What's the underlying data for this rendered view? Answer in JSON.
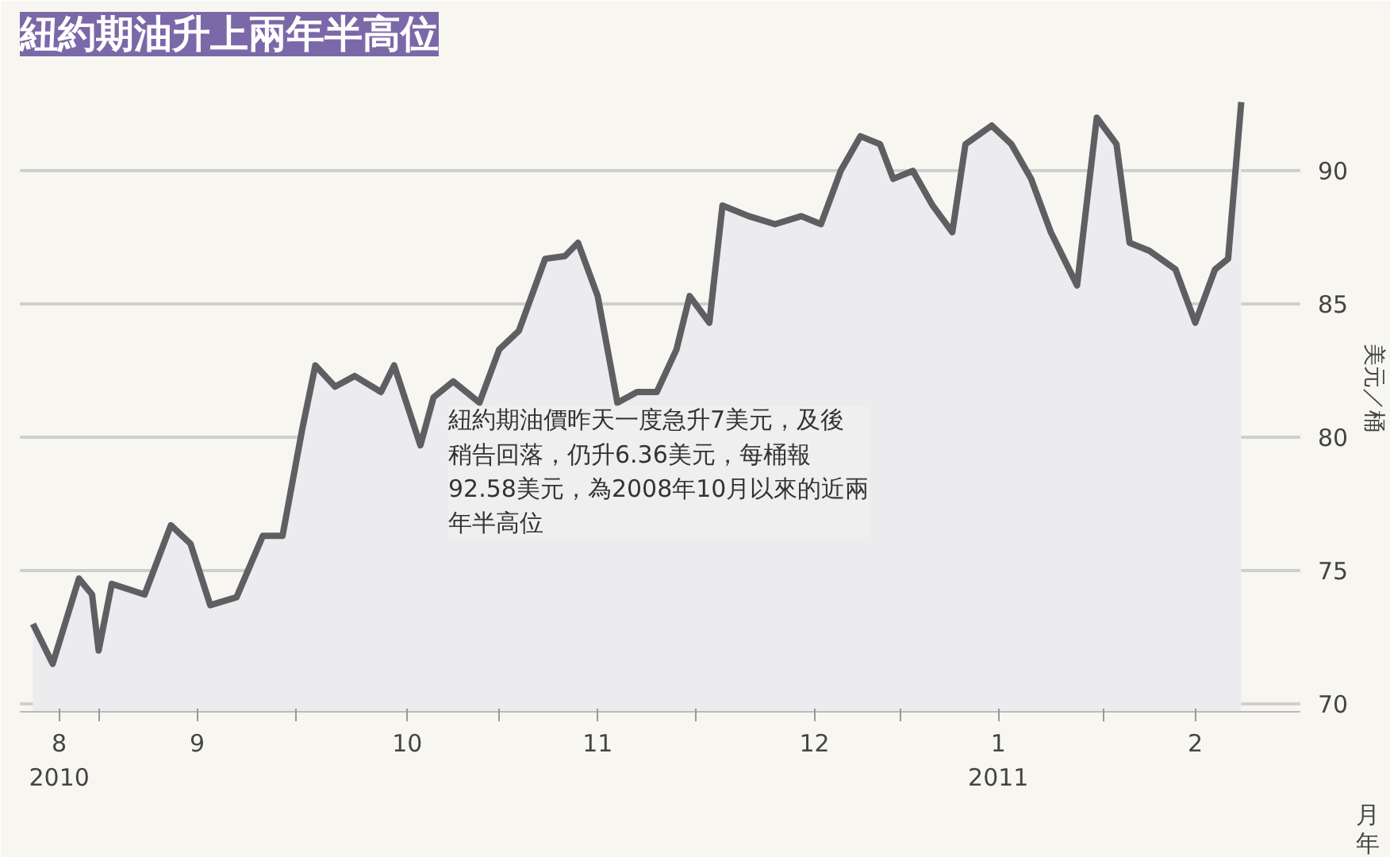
{
  "chart_data": {
    "type": "area",
    "title": "紐約期油升上兩年半高位",
    "ylabel": "美元／桶",
    "xlabel": "月年",
    "annotations": [
      "紐約期油價昨天一度急升7美元，及後稍告回落，仍升6.36美元，每桶報92.58美元，為2008年10月以來的近兩年半高位"
    ],
    "x": [
      "2010-08-22",
      "2010-08-25",
      "2010-08-29",
      "2010-08-31",
      "2010-09-01",
      "2010-09-03",
      "2010-09-08",
      "2010-09-12",
      "2010-09-15",
      "2010-09-18",
      "2010-09-22",
      "2010-09-26",
      "2010-09-29",
      "2010-10-02",
      "2010-10-04",
      "2010-10-07",
      "2010-10-10",
      "2010-10-14",
      "2010-10-16",
      "2010-10-20",
      "2010-10-22",
      "2010-10-25",
      "2010-10-29",
      "2010-11-01",
      "2010-11-04",
      "2010-11-08",
      "2010-11-11",
      "2010-11-13",
      "2010-11-16",
      "2010-11-19",
      "2010-11-22",
      "2010-11-25",
      "2010-11-28",
      "2010-11-30",
      "2010-12-03",
      "2010-12-05",
      "2010-12-09",
      "2010-12-13",
      "2010-12-17",
      "2010-12-20",
      "2010-12-23",
      "2010-12-26",
      "2010-12-29",
      "2010-12-31",
      "2011-01-03",
      "2011-01-06",
      "2011-01-09",
      "2011-01-11",
      "2011-01-15",
      "2011-01-18",
      "2011-01-21",
      "2011-01-24",
      "2011-01-26",
      "2011-01-28",
      "2011-01-31",
      "2011-02-03",
      "2011-02-05",
      "2011-02-08",
      "2011-02-12",
      "2011-02-15",
      "2011-02-18",
      "2011-02-20",
      "2011-02-22"
    ],
    "series": [
      {
        "color": "#5f5f63",
        "values": [
          73.0,
          71.5,
          74.7,
          74.1,
          72.0,
          74.5,
          74.1,
          76.7,
          76.0,
          73.7,
          74.0,
          76.3,
          76.3,
          80.3,
          82.7,
          81.9,
          82.3,
          81.7,
          82.7,
          79.7,
          81.5,
          82.1,
          81.3,
          83.3,
          84.0,
          86.7,
          86.8,
          87.3,
          85.3,
          81.3,
          81.7,
          81.7,
          83.3,
          85.3,
          84.3,
          88.7,
          88.3,
          88.0,
          88.3,
          88.0,
          90.0,
          91.3,
          91.0,
          89.7,
          90.0,
          88.7,
          87.7,
          91.0,
          91.7,
          91.0,
          89.7,
          87.7,
          86.7,
          85.7,
          92.0,
          91.0,
          87.3,
          87.0,
          86.3,
          84.3,
          86.3,
          86.7,
          92.58
        ]
      }
    ],
    "xlim": [
      "2010-08-20",
      "2011-03-03"
    ],
    "xticks": [
      {
        "value": "2010-09-01",
        "label": null
      },
      {
        "value": "2010-10-01",
        "label": null
      },
      {
        "value": "2010-11-01",
        "label": null
      },
      {
        "value": "2010-12-01",
        "label": null
      },
      {
        "value": "2011-01-01",
        "label": null
      },
      {
        "value": "2011-02-01",
        "label": null
      },
      {
        "value": "2010-08-26",
        "label": "8\n2010"
      },
      {
        "value": "2010-09-16",
        "label": "9"
      },
      {
        "value": "2010-10-18",
        "label": "10"
      },
      {
        "value": "2010-11-16",
        "label": "11"
      },
      {
        "value": "2010-12-19",
        "label": "12"
      },
      {
        "value": "2011-01-16",
        "label": "1\n2011"
      },
      {
        "value": "2011-02-15",
        "label": "2"
      }
    ],
    "ylim": [
      69.7,
      94
    ],
    "yticks": [
      70,
      75,
      80,
      85,
      90
    ],
    "grid": "y"
  }
}
